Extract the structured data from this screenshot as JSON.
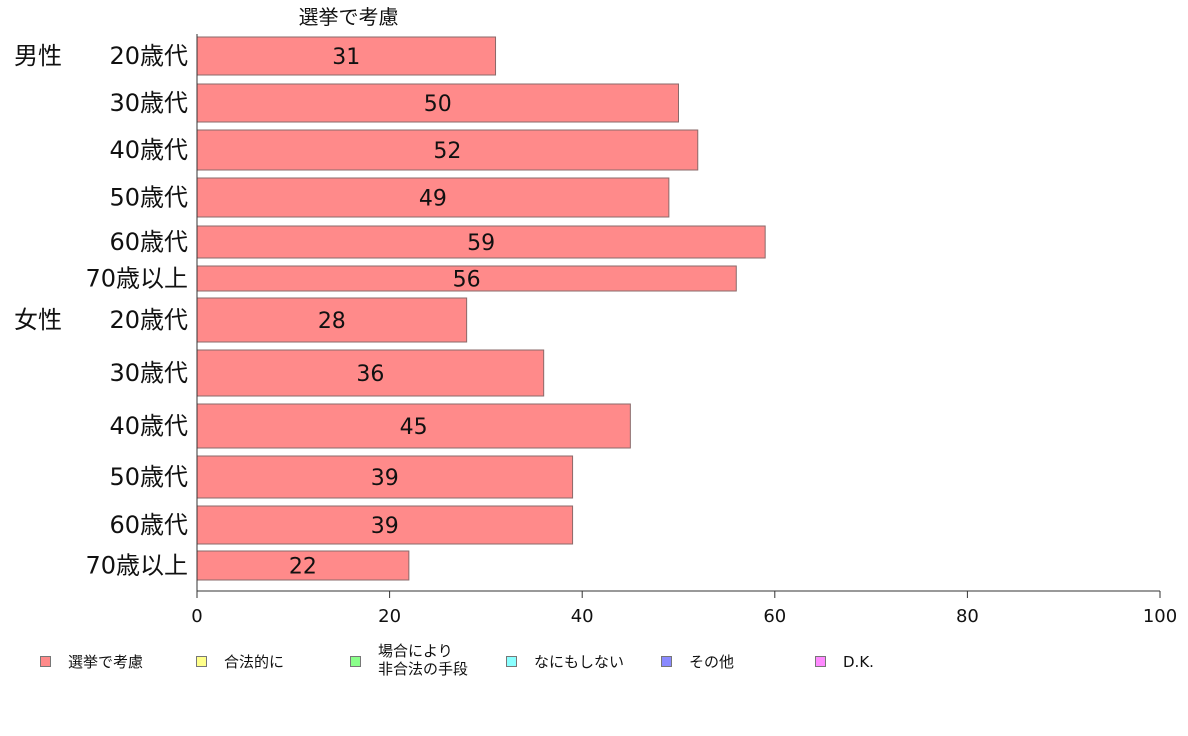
{
  "chart_data": {
    "type": "bar",
    "orientation": "horizontal",
    "title": "選挙で考慮",
    "groups": [
      {
        "label": "男性",
        "categories": [
          "20歳代",
          "30歳代",
          "40歳代",
          "50歳代",
          "60歳代",
          "70歳以上"
        ]
      },
      {
        "label": "女性",
        "categories": [
          "20歳代",
          "30歳代",
          "40歳代",
          "50歳代",
          "60歳代",
          "70歳以上"
        ]
      }
    ],
    "series": [
      {
        "name": "選挙で考慮",
        "color": "#ff8a8a",
        "values": [
          31,
          50,
          52,
          49,
          59,
          56,
          28,
          36,
          45,
          39,
          39,
          22
        ]
      }
    ],
    "data_labels": [
      "31",
      "50",
      "52",
      "49",
      "59",
      "56",
      "28",
      "36",
      "45",
      "39",
      "39",
      "22"
    ],
    "xlim": [
      0,
      100
    ],
    "x_ticks": [
      "0",
      "20",
      "40",
      "60",
      "80",
      "100"
    ],
    "xlabel": "",
    "ylabel": "",
    "grid": false,
    "legend_position": "bottom"
  },
  "legend": [
    {
      "label": "選挙で考慮",
      "color": "#ff8a8a"
    },
    {
      "label": "合法的に",
      "color": "#ffff8a"
    },
    {
      "label": "場合により\n非合法の手段",
      "color": "#8aff8a"
    },
    {
      "label": "なにもしない",
      "color": "#8affff"
    },
    {
      "label": "その他",
      "color": "#8a8aff"
    },
    {
      "label": "D.K.",
      "color": "#ff8aff"
    }
  ]
}
